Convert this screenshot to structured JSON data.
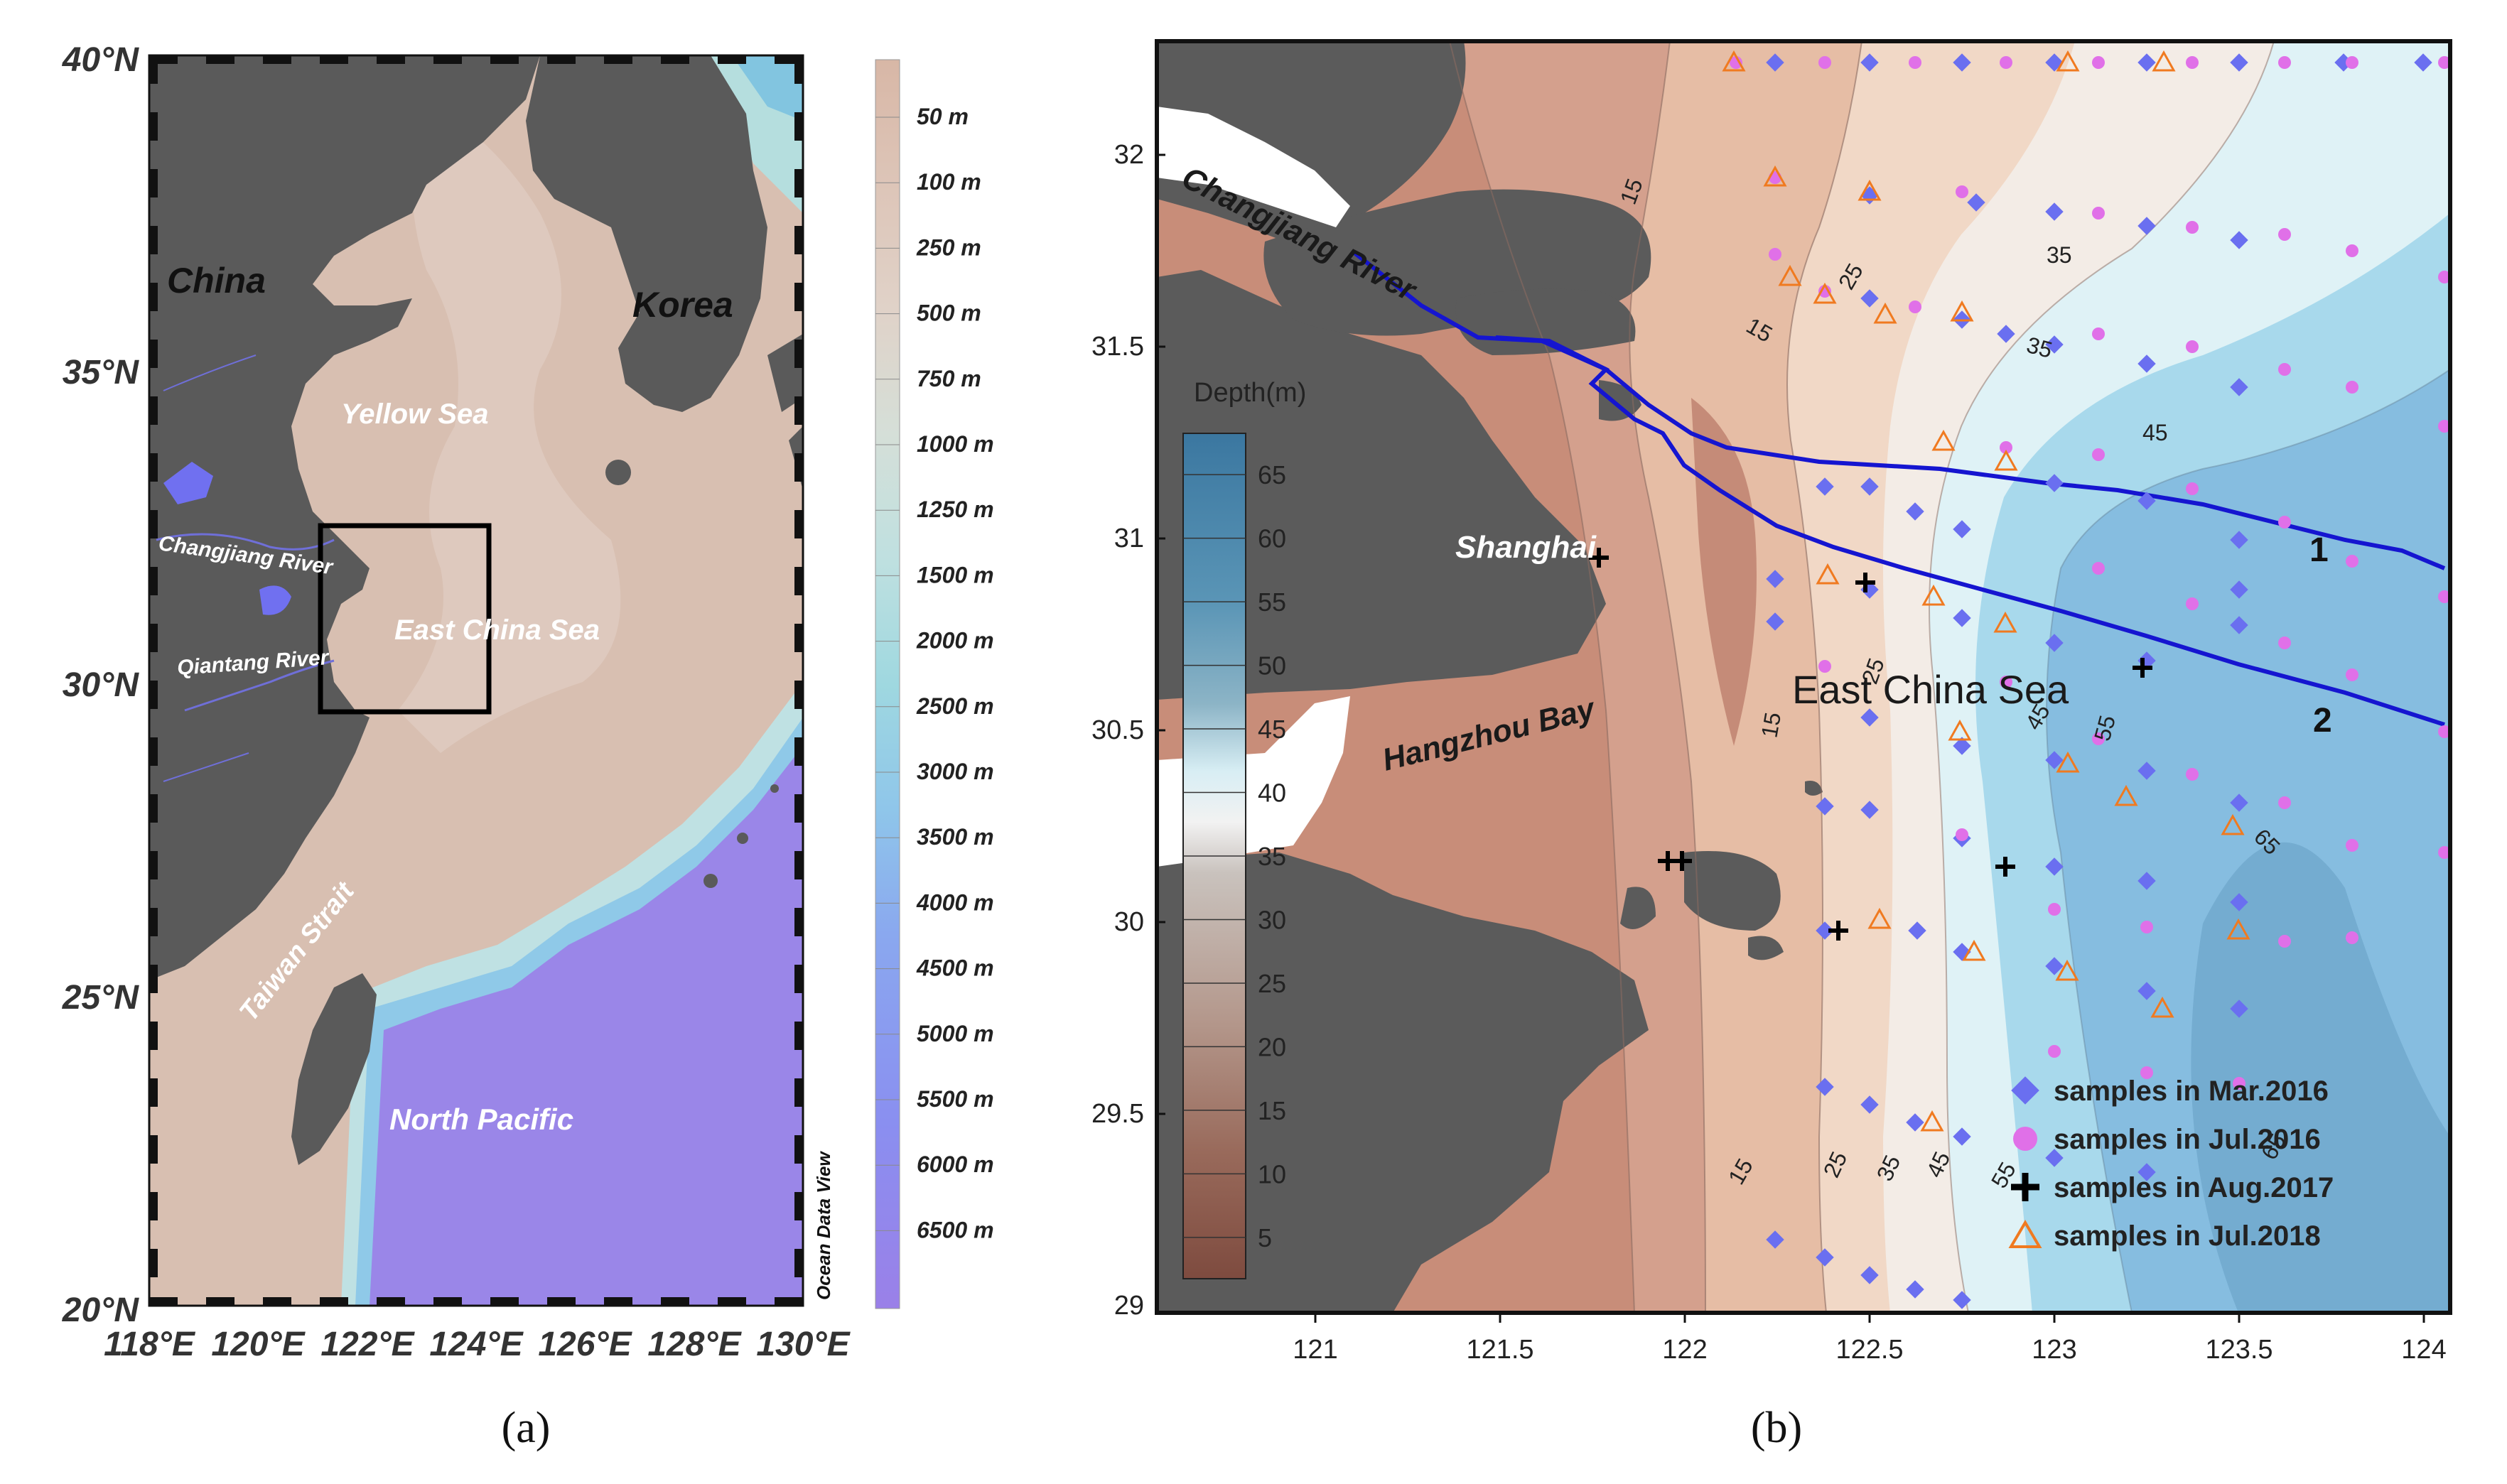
{
  "panel_a": {
    "label": "(a)",
    "lat_ticks": [
      "40°N",
      "35°N",
      "30°N",
      "25°N",
      "20°N"
    ],
    "lon_ticks": [
      "118°E",
      "120°E",
      "122°E",
      "124°E",
      "126°E",
      "128°E",
      "130°E"
    ],
    "regions": {
      "china": "China",
      "korea": "Korea",
      "yellow_sea": "Yellow Sea",
      "east_china_sea": "East China Sea",
      "changjiang": "Changjiang River",
      "qiantang": "Qiantang River",
      "taiwan_strait": "Taiwan Strait",
      "north_pacific": "North Pacific"
    },
    "credit": "Ocean Data View",
    "colorbar": [
      "50 m",
      "100 m",
      "250 m",
      "500 m",
      "750 m",
      "1000 m",
      "1250 m",
      "1500 m",
      "2000 m",
      "2500 m",
      "3000 m",
      "3500 m",
      "4000 m",
      "4500 m",
      "5000 m",
      "5500 m",
      "6000 m",
      "6500 m"
    ],
    "colors": {
      "land": "#5a5a5a",
      "shelf": "#d9bfb0",
      "ocean_mid": "#c4e0e2",
      "deep": "#9b86e8",
      "box": "#000000"
    }
  },
  "panel_b": {
    "label": "(b)",
    "x_ticks": [
      "121",
      "121.5",
      "122",
      "122.5",
      "123",
      "123.5",
      "124"
    ],
    "y_ticks": [
      "32",
      "31.5",
      "31",
      "30.5",
      "30",
      "29.5",
      "29"
    ],
    "places": {
      "changjiang": "Changjiang River",
      "shanghai": "Shanghai",
      "hangzhou_bay": "Hangzhou Bay",
      "east_china_sea": "East China Sea"
    },
    "transects": {
      "t1": "1",
      "t2": "2"
    },
    "colorbar": {
      "title": "Depth(m)",
      "ticks": [
        "65",
        "60",
        "55",
        "50",
        "45",
        "40",
        "35",
        "30",
        "25",
        "20",
        "15",
        "10",
        "5"
      ]
    },
    "contour_labels": [
      "15",
      "15",
      "25",
      "35",
      "35",
      "45",
      "15",
      "25",
      "45",
      "55",
      "65",
      "15",
      "25",
      "35",
      "45",
      "55",
      "65"
    ],
    "legend": [
      {
        "label": "samples in Mar.2016",
        "marker": "diamond",
        "color": "#6a6ff0"
      },
      {
        "label": "samples in Jul.2016",
        "marker": "circle",
        "color": "#e070e8"
      },
      {
        "label": "samples in Aug.2017",
        "marker": "cross",
        "color": "#000000"
      },
      {
        "label": "samples in Jul.2018",
        "marker": "triangle",
        "color": "#f07a20"
      }
    ],
    "colors": {
      "land": "#5b5b5b",
      "transect": "#1515d0"
    }
  }
}
